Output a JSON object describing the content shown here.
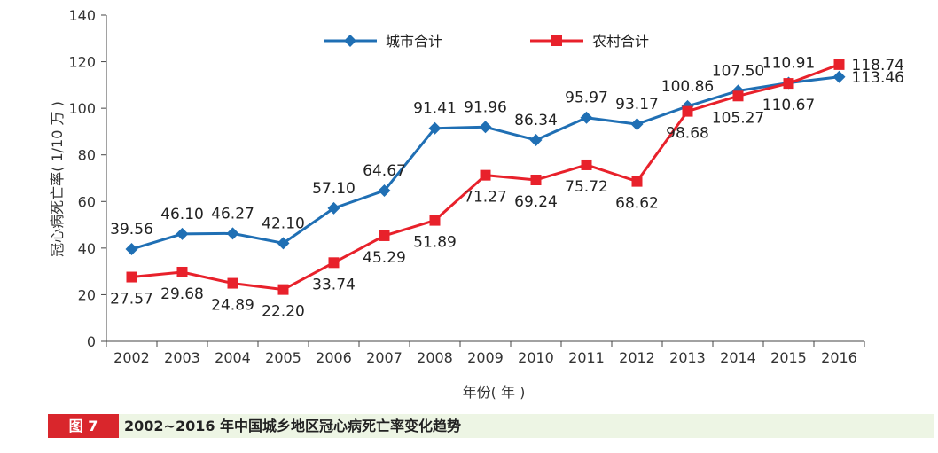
{
  "figure": {
    "label": "图 7",
    "title": "2002~2016 年中国城乡地区冠心病死亡率变化趋势"
  },
  "colors": {
    "urban": "#1f6fb4",
    "rural": "#e8212b",
    "axis": "#444444",
    "caption_bg": "#edf5e4",
    "label_bg": "#d9262c"
  },
  "chart_data": {
    "type": "line",
    "xlabel": "年份( 年 )",
    "ylabel": "冠心病死亡率( 1/10 万 )",
    "ylim": [
      0,
      140
    ],
    "yticks": [
      0,
      20,
      40,
      60,
      80,
      100,
      120,
      140
    ],
    "grid": false,
    "legend_position": "top-center",
    "categories": [
      "2002",
      "2003",
      "2004",
      "2005",
      "2006",
      "2007",
      "2008",
      "2009",
      "2010",
      "2011",
      "2012",
      "2013",
      "2014",
      "2015",
      "2016"
    ],
    "series": [
      {
        "name": "城市合计",
        "marker": "diamond",
        "values": [
          39.56,
          46.1,
          46.27,
          42.1,
          57.1,
          64.67,
          91.41,
          91.96,
          86.34,
          95.97,
          93.17,
          100.86,
          107.5,
          110.91,
          113.46
        ],
        "labels": [
          "39.56",
          "46.10",
          "46.27",
          "42.10",
          "57.10",
          "64.67",
          "91.41",
          "91.96",
          "86.34",
          "95.97",
          "93.17",
          "100.86",
          "107.50",
          "110.91",
          "113.46"
        ]
      },
      {
        "name": "农村合计",
        "marker": "square",
        "values": [
          27.57,
          29.68,
          24.89,
          22.2,
          33.74,
          45.29,
          51.89,
          71.27,
          69.24,
          75.72,
          68.62,
          98.68,
          105.27,
          110.67,
          118.74
        ],
        "labels": [
          "27.57",
          "29.68",
          "24.89",
          "22.20",
          "33.74",
          "45.29",
          "51.89",
          "71.27",
          "69.24",
          "75.72",
          "68.62",
          "98.68",
          "105.27",
          "110.67",
          "118.74"
        ]
      }
    ]
  }
}
